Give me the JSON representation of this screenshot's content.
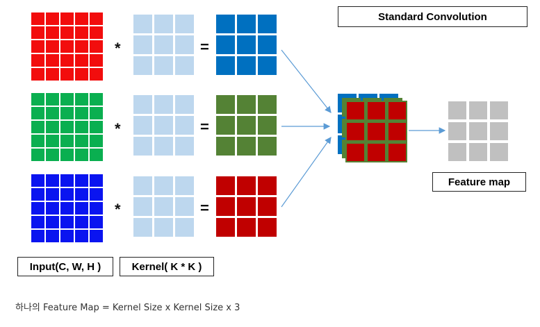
{
  "title": "Standard Convolution",
  "input_label": "Input(C, W, H )",
  "kernel_label": "Kernel( K * K )",
  "output_label": "Feature map",
  "caption": "하나의 Feature Map = Kernel Size x Kernel Size x 3",
  "operators": {
    "multiply": "*",
    "equals": "="
  },
  "colors": {
    "input_red": "#f20d0d",
    "input_green": "#0aaf50",
    "input_blue": "#0a14f0",
    "kernel": "#bdd7ee",
    "out_blue": "#0070c0",
    "out_green": "#548235",
    "out_red": "#c00000",
    "feature_map": "#c0c0c0",
    "arrow": "#5b9bd5"
  },
  "rows": [
    {
      "input_color": "input_red",
      "output_color": "out_blue"
    },
    {
      "input_color": "input_green",
      "output_color": "out_green"
    },
    {
      "input_color": "input_blue",
      "output_color": "out_red"
    }
  ]
}
